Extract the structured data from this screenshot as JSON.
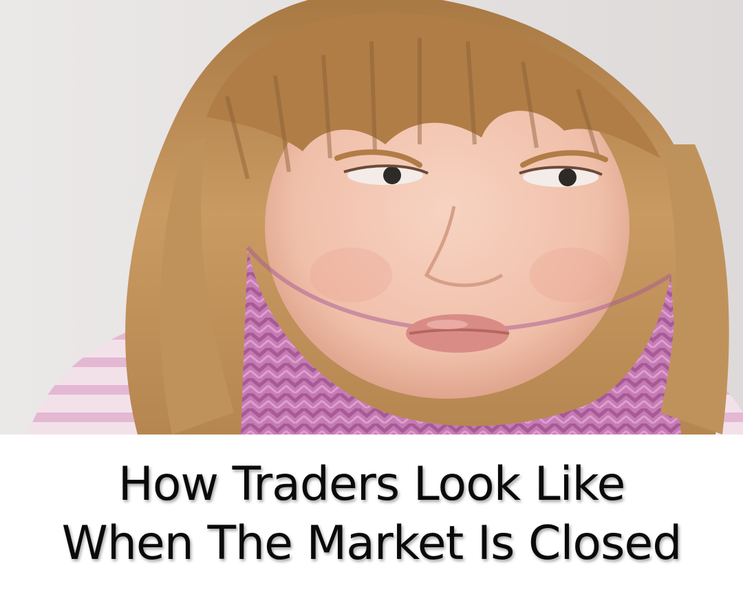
{
  "photo": {
    "subject": "pouting-girl-in-pink-knit-scarf",
    "colors": {
      "background": "#e9e6e6",
      "hair": "#b98a55",
      "hair_dark": "#8a5f35",
      "skin": "#f2c7b4",
      "scarf": "#c77bb5",
      "scarf_dark": "#a65a96",
      "lips": "#d98c86"
    }
  },
  "caption": {
    "line1": "How Traders Look Like",
    "line2": "When The Market Is Closed"
  }
}
